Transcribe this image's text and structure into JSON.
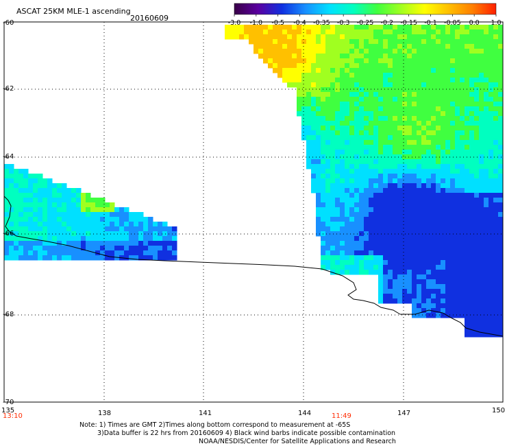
{
  "header": {
    "title": "ASCAT 25KM MLE-1 ascending",
    "date": "20160609"
  },
  "colorbar": {
    "labels": [
      "-3.0",
      "-1.0",
      "-0.5",
      "-0.4",
      "-0.35",
      "-0.3",
      "-0.25",
      "-0.2",
      "-0.15",
      "-0.1",
      "-0.05",
      "0.0",
      "1.0"
    ],
    "colors": [
      "#3a0048",
      "#5a00a0",
      "#1030e0",
      "#1890ff",
      "#00e0ff",
      "#00ffc0",
      "#40ff40",
      "#a0ff20",
      "#ffff00",
      "#ffc000",
      "#ff8000",
      "#ff2000"
    ]
  },
  "axes": {
    "lat_labels": [
      "-60",
      "-62",
      "-64",
      "-66",
      "-68",
      "-70"
    ],
    "lon_labels": [
      "135",
      "138",
      "141",
      "144",
      "147",
      "150"
    ]
  },
  "times": {
    "left": "13:10",
    "mid": "11:49"
  },
  "notes": {
    "line1": "Note: 1) Times are GMT 2)Times along bottom correspond to measurement at -65S",
    "line2": "3)Data buffer is 22 hrs from 20160609 4) Black wind barbs indicate possible contamination",
    "line3": "NOAA/NESDIS/Center for Satellite Applications and Research"
  }
}
